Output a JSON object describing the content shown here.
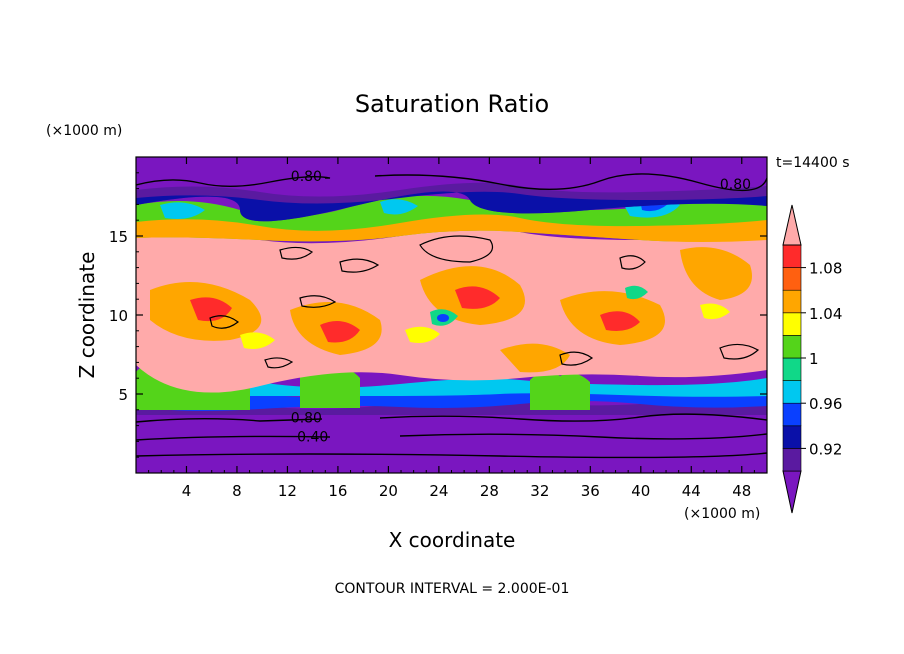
{
  "chart_data": {
    "type": "heatmap",
    "title": "Saturation Ratio",
    "xlabel": "X coordinate",
    "ylabel": "Z coordinate",
    "x_unit": "(×1000 m)",
    "y_unit": "(×1000 m)",
    "time_label": "t=14400 s",
    "footer": "CONTOUR INTERVAL = 2.000E-01",
    "xlim": [
      0,
      50
    ],
    "ylim": [
      0,
      20
    ],
    "x_ticks": [
      4,
      8,
      12,
      16,
      20,
      24,
      28,
      32,
      36,
      40,
      44,
      48
    ],
    "y_ticks": [
      5,
      10,
      15
    ],
    "colorbar": {
      "levels": [
        0.9,
        0.92,
        0.94,
        0.96,
        0.98,
        1.0,
        1.02,
        1.04,
        1.06,
        1.08,
        1.1
      ],
      "tick_labels": [
        "0.92",
        "0.96",
        "1",
        "1.04",
        "1.08"
      ],
      "tick_values": [
        0.92,
        0.96,
        1.0,
        1.04,
        1.08
      ],
      "colors": [
        "#7a16c0",
        "#5a1aa0",
        "#0a10a8",
        "#0a40ff",
        "#00c8f0",
        "#10d888",
        "#54d41a",
        "#ffff00",
        "#ffa600",
        "#ff6010",
        "#ff2b2b",
        "#ffaaaa"
      ]
    },
    "contour_labels": [
      {
        "text": "0.80",
        "x": 13.5,
        "y": 18.8
      },
      {
        "text": "0.80",
        "x": 47.5,
        "y": 18.3
      },
      {
        "text": "0.80",
        "x": 13.5,
        "y": 3.5
      },
      {
        "text": "0.40",
        "x": 14.0,
        "y": 2.3
      }
    ],
    "bands": [
      {
        "z": 0.0,
        "value": 0.5
      },
      {
        "z": 3.6,
        "value": 0.9
      },
      {
        "z": 4.0,
        "value": 0.95
      },
      {
        "z": 5.0,
        "value": 1.01
      },
      {
        "z": 7.0,
        "value": 1.1
      },
      {
        "z": 15.0,
        "value": 1.06
      },
      {
        "z": 16.5,
        "value": 0.97
      },
      {
        "z": 17.5,
        "value": 0.5
      }
    ]
  }
}
